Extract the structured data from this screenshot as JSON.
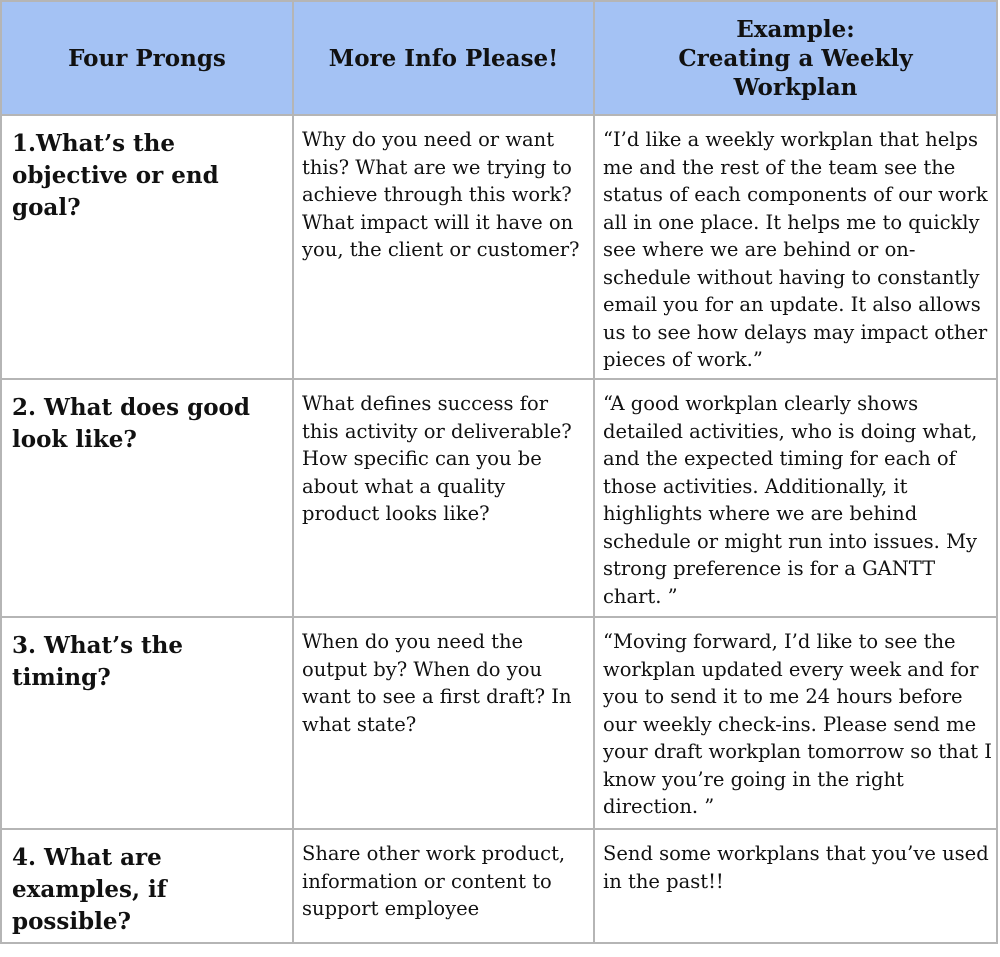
{
  "table": {
    "header_bg": "#a4c2f4",
    "columns": [
      {
        "label": "Four Prongs"
      },
      {
        "label": "More Info Please!"
      },
      {
        "label_lines": [
          "Example:",
          "Creating a Weekly",
          "Workplan"
        ]
      }
    ],
    "rows": [
      {
        "prong": "1.What’s the objective or end goal?",
        "info": "Why do you need or want this? What are we trying to achieve through this work? What impact will it have on you, the client or customer?",
        "example": "“I’d like a weekly workplan that helps me and the rest of the team see the status of each components of our work all in one place.  It helps me to quickly see where we are behind or on-schedule without having to constantly email you for an update. It also allows us to see how delays may impact other pieces of work.”"
      },
      {
        "prong": "2. What does good look like?",
        "info": "What defines success for this activity or deliverable? How specific can you be about what a quality product looks like?",
        "example": "“A good workplan clearly shows detailed activities, who is doing what, and the expected timing for each of those activities.  Additionally, it highlights where we are behind schedule or might run into issues. My strong preference is for a GANTT chart.  ”"
      },
      {
        "prong": "3. What’s the timing?",
        "info": "When do you need the output by? When do you want to see a first draft? In what state?",
        "example": "“Moving forward, I’d like to see the workplan updated every week and for you to send it to me 24 hours before our weekly check-ins. Please send me your draft workplan tomorrow so that I know you’re going in the right direction. ”"
      },
      {
        "prong": "4. What are examples, if possible?",
        "info": "Share other work product, information or content to support employee",
        "example": "Send some workplans that you’ve used in the past!!"
      }
    ]
  }
}
